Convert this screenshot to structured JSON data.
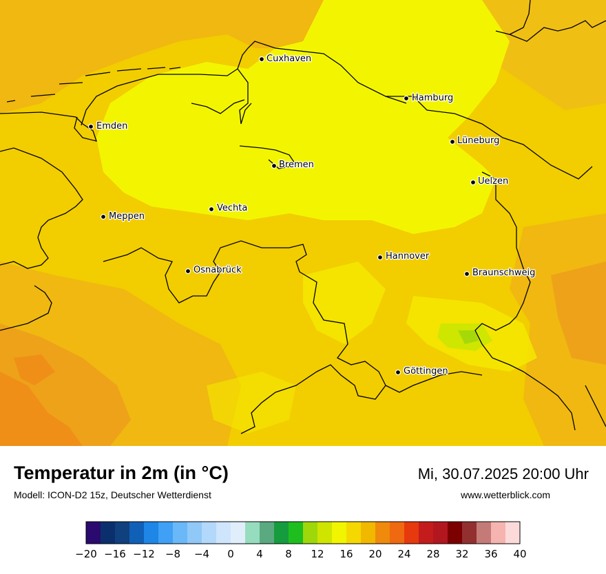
{
  "map": {
    "cities": [
      {
        "name": "Cuxhaven"
      },
      {
        "name": "Hamburg"
      },
      {
        "name": "Emden"
      },
      {
        "name": "Lüneburg"
      },
      {
        "name": "Bremen"
      },
      {
        "name": "Uelzen"
      },
      {
        "name": "Vechta"
      },
      {
        "name": "Meppen"
      },
      {
        "name": "Hannover"
      },
      {
        "name": "Osnabrück"
      },
      {
        "name": "Braunschweig"
      },
      {
        "name": "Göttingen"
      }
    ]
  },
  "footer": {
    "title": "Temperatur in 2m (in °C)",
    "model": "Modell: ICON-D2 15z, Deutscher Wetterdienst",
    "datetime": "Mi, 30.07.2025 20:00 Uhr",
    "website": "www.wetterblick.com"
  },
  "legend": {
    "tick_labels": [
      "−20",
      "−16",
      "−12",
      "−8",
      "−4",
      "0",
      "4",
      "8",
      "12",
      "16",
      "20",
      "24",
      "28",
      "32",
      "36",
      "40"
    ],
    "colors": [
      "#2a0a6e",
      "#0b2f6c",
      "#10407e",
      "#1060b8",
      "#1d86e6",
      "#3fa0f5",
      "#6ab8f7",
      "#90c8f8",
      "#b2d8fb",
      "#cfe5fb",
      "#e0eefc",
      "#96dcbe",
      "#5aa980",
      "#159c3e",
      "#1fbe1f",
      "#9ed70a",
      "#cfe500",
      "#f1f500",
      "#f4d800",
      "#f1b800",
      "#ef8a0c",
      "#ef6910",
      "#e7390e",
      "#c41c1c",
      "#b2161f",
      "#7c0000",
      "#923030",
      "#c47b78",
      "#f5b4b0",
      "#fddada"
    ]
  }
}
